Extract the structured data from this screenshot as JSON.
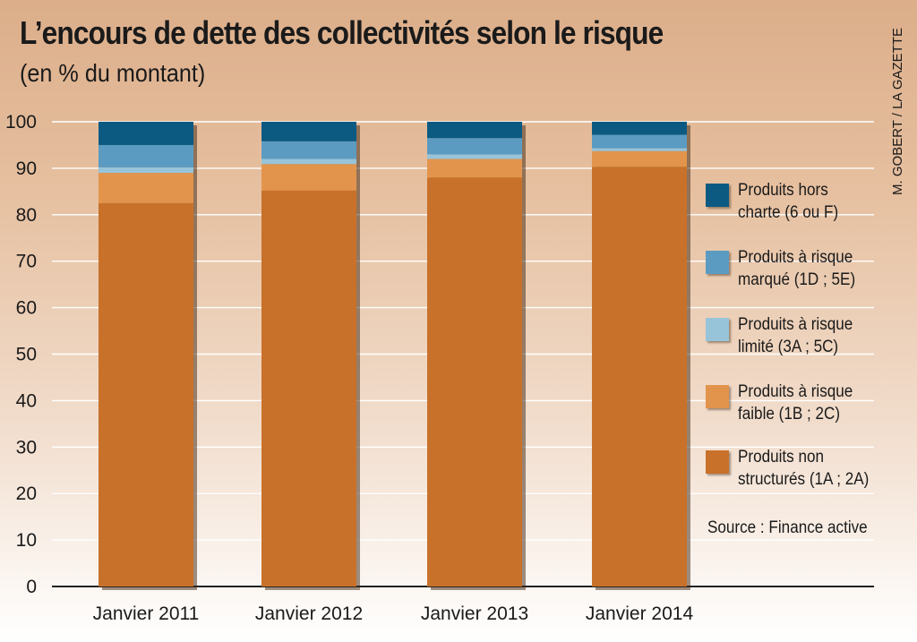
{
  "chart_data": {
    "type": "bar",
    "stacked": true,
    "title": "L’encours de dette des collectivités selon le risque",
    "subtitle": "(en % du montant)",
    "categories": [
      "Janvier 2011",
      "Janvier 2012",
      "Janvier 2013",
      "Janvier 2014"
    ],
    "ylim": [
      0,
      100
    ],
    "yticks": [
      0,
      10,
      20,
      30,
      40,
      50,
      60,
      70,
      80,
      90,
      100
    ],
    "grid": true,
    "legend_position": "right",
    "series": [
      {
        "name": "Produits non structurés (1A ; 2A)",
        "color": "#c8712a",
        "values": [
          82.5,
          85.2,
          88.0,
          90.3
        ]
      },
      {
        "name": "Produits à risque faible (1B ; 2C)",
        "color": "#e3944c",
        "values": [
          6.5,
          5.7,
          4.0,
          3.4
        ]
      },
      {
        "name": "Produits à risque limité (3A ; 5C)",
        "color": "#98c4da",
        "values": [
          1.2,
          1.1,
          1.0,
          0.6
        ]
      },
      {
        "name": "Produits à risque marqué (1D ; 5E)",
        "color": "#5c9bc1",
        "values": [
          4.8,
          3.8,
          3.5,
          2.9
        ]
      },
      {
        "name": "Produits hors charte (6 ou F)",
        "color": "#0c5a82",
        "values": [
          5.0,
          4.2,
          3.5,
          2.8
        ]
      }
    ]
  },
  "legend": [
    {
      "line1": "Produits hors",
      "line2": "charte (6 ou F)",
      "color": "#0c5a82"
    },
    {
      "line1": "Produits à risque",
      "line2": "marqué (1D ; 5E)",
      "color": "#5c9bc1"
    },
    {
      "line1": "Produits à risque",
      "line2": "limité (3A ; 5C)",
      "color": "#98c4da"
    },
    {
      "line1": "Produits à risque",
      "line2": "faible (1B ; 2C)",
      "color": "#e3944c"
    },
    {
      "line1": "Produits non",
      "line2": "structurés (1A ; 2A)",
      "color": "#c8712a"
    }
  ],
  "source": "Source : Finance active",
  "credit": "M. GOBERT / LA GAZETTE"
}
